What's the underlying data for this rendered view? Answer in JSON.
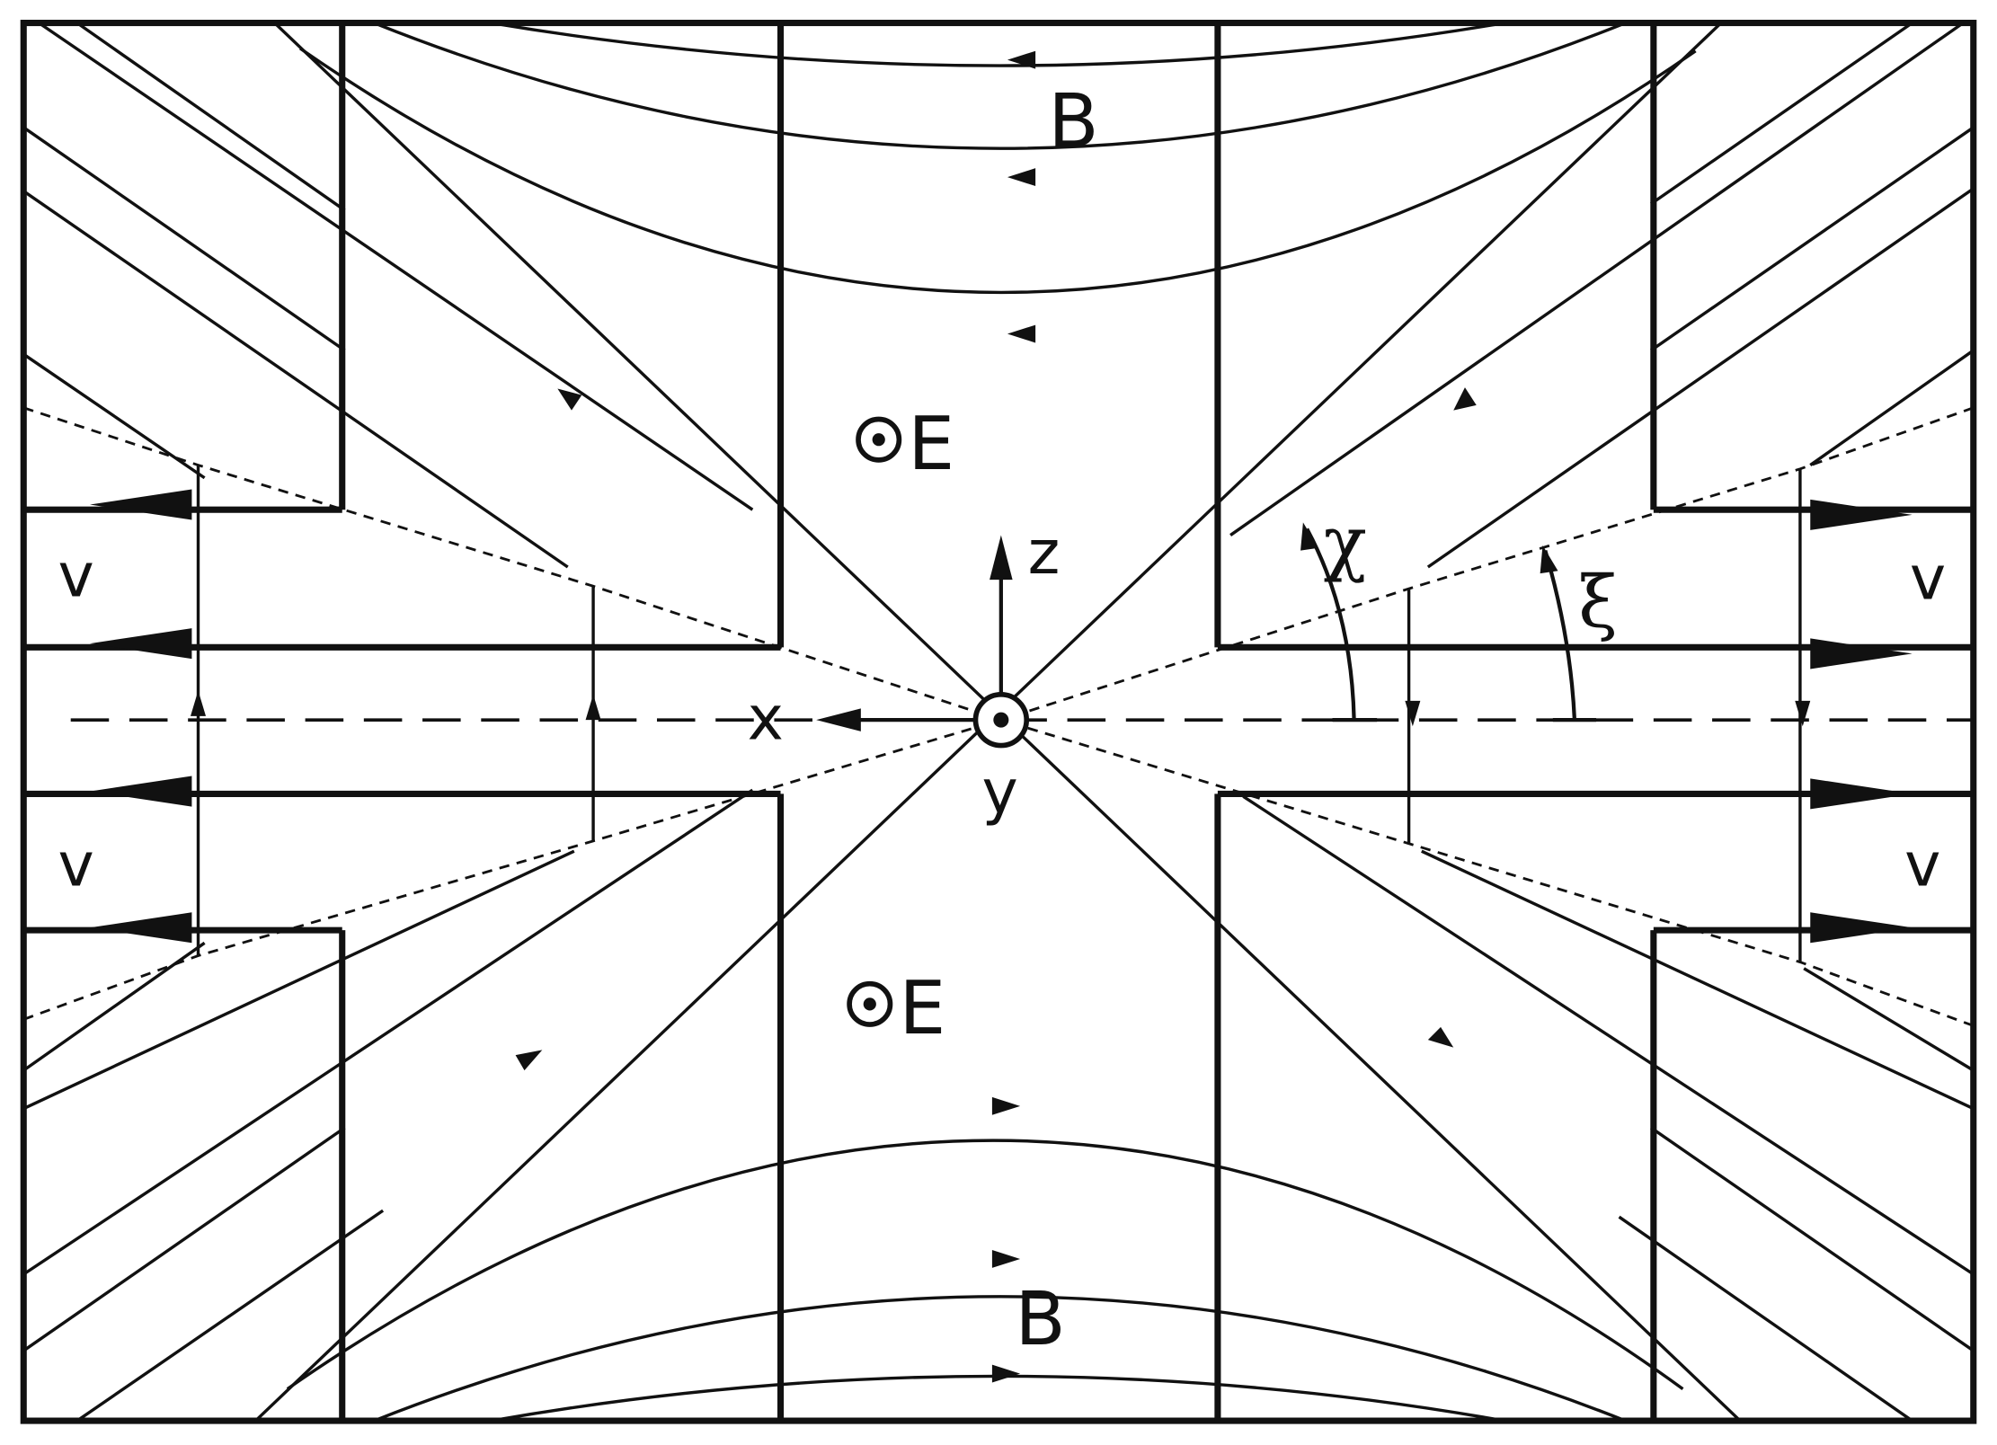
{
  "labels": {
    "B_top": "B",
    "B_bottom": "B",
    "E_upper": "E",
    "E_lower": "E",
    "axis_z": "z",
    "axis_x": "x",
    "axis_y": "y",
    "angle_chi": "χ",
    "angle_xi": "ξ",
    "v_upper_left": "v",
    "v_lower_left": "v",
    "v_upper_right": "v",
    "v_lower_right": "v"
  },
  "colors": {
    "ink": "#111111",
    "background": "#ffffff"
  }
}
